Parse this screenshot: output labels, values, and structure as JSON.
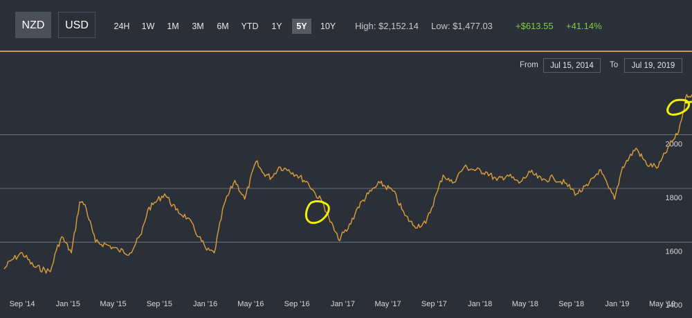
{
  "currency": {
    "buttons": [
      {
        "label": "NZD",
        "active": true
      },
      {
        "label": "USD",
        "active": false
      }
    ]
  },
  "ranges": [
    {
      "label": "24H"
    },
    {
      "label": "1W"
    },
    {
      "label": "1M"
    },
    {
      "label": "3M"
    },
    {
      "label": "6M"
    },
    {
      "label": "YTD"
    },
    {
      "label": "1Y"
    },
    {
      "label": "5Y",
      "active": true
    },
    {
      "label": "10Y"
    }
  ],
  "stats": {
    "high": "High: $2,152.14",
    "low": "Low: $1,477.03",
    "change": "+$613.55",
    "change_pct": "+41.14%"
  },
  "date_range": {
    "from_label": "From",
    "from": "Jul 15, 2014",
    "to_label": "To",
    "to": "Jul 19, 2019"
  },
  "colors": {
    "background": "#2b2f38",
    "line": "#d29a3a",
    "grid": "#6b707a",
    "positive": "#7fd03f",
    "annotation": "#f2f200"
  },
  "chart_data": {
    "type": "line",
    "x_ticks": [
      "Sep '14",
      "Jan '15",
      "May '15",
      "Sep '15",
      "Jan '16",
      "May '16",
      "Sep '16",
      "Jan '17",
      "May '17",
      "Sep '17",
      "Jan '18",
      "May '18",
      "Sep '18",
      "Jan '19",
      "May '19"
    ],
    "y_ticks": [
      1400,
      1600,
      1800,
      2000
    ],
    "ylim": [
      1400,
      2200
    ],
    "series": [
      {
        "dates": [
          "2014-07-15",
          "2014-08-01",
          "2014-09-01",
          "2014-10-01",
          "2014-11-15",
          "2014-12-01",
          "2014-12-15",
          "2015-01-10",
          "2015-02-01",
          "2015-02-15",
          "2015-03-15",
          "2015-04-15",
          "2015-05-15",
          "2015-06-15",
          "2015-07-15",
          "2015-08-01",
          "2015-08-15",
          "2015-09-15",
          "2015-10-15",
          "2015-11-15",
          "2015-12-15",
          "2016-01-05",
          "2016-01-25",
          "2016-02-20",
          "2016-03-20",
          "2016-04-15",
          "2016-05-15",
          "2016-06-01",
          "2016-06-25",
          "2016-07-15",
          "2016-08-10",
          "2016-09-01",
          "2016-10-01",
          "2016-10-20",
          "2016-11-08",
          "2016-11-25",
          "2016-12-20",
          "2017-01-15",
          "2017-02-10",
          "2017-03-10",
          "2017-04-10",
          "2017-05-15",
          "2017-06-15",
          "2017-07-10",
          "2017-08-10",
          "2017-09-10",
          "2017-09-25",
          "2017-10-20",
          "2017-11-20",
          "2017-12-15",
          "2018-01-20",
          "2018-02-15",
          "2018-03-15",
          "2018-04-15",
          "2018-05-15",
          "2018-06-15",
          "2018-07-15",
          "2018-08-15",
          "2018-09-15",
          "2018-10-15",
          "2018-11-15",
          "2018-12-10",
          "2018-12-25",
          "2019-01-15",
          "2019-02-20",
          "2019-03-20",
          "2019-04-20",
          "2019-05-20",
          "2019-06-10",
          "2019-06-25",
          "2019-07-05",
          "2019-07-19"
        ],
        "values": [
          1500,
          1530,
          1560,
          1510,
          1490,
          1570,
          1620,
          1560,
          1750,
          1740,
          1600,
          1590,
          1570,
          1560,
          1630,
          1720,
          1740,
          1780,
          1720,
          1690,
          1620,
          1570,
          1560,
          1740,
          1830,
          1760,
          1900,
          1860,
          1840,
          1880,
          1870,
          1850,
          1820,
          1780,
          1750,
          1690,
          1610,
          1650,
          1730,
          1780,
          1820,
          1790,
          1700,
          1660,
          1670,
          1790,
          1850,
          1820,
          1880,
          1870,
          1860,
          1830,
          1850,
          1820,
          1860,
          1830,
          1840,
          1820,
          1780,
          1810,
          1870,
          1800,
          1760,
          1880,
          1950,
          1890,
          1880,
          1960,
          2000,
          2080,
          2150,
          2150
        ]
      }
    ]
  }
}
